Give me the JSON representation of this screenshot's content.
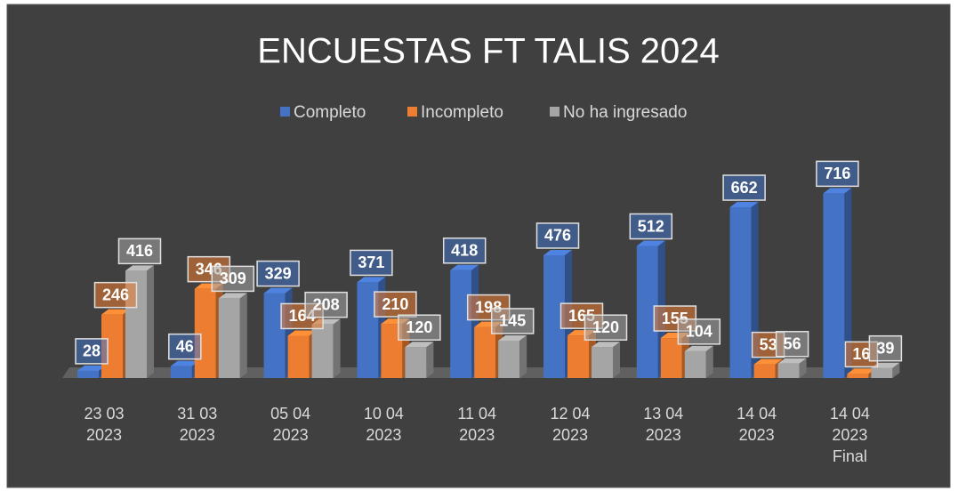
{
  "chart_data": {
    "type": "bar3d",
    "title": "ENCUESTAS FT TALIS 2024",
    "categories": [
      [
        "23 03",
        "2023"
      ],
      [
        "31 03",
        "2023"
      ],
      [
        "05 04",
        "2023"
      ],
      [
        "10 04",
        "2023"
      ],
      [
        "11 04",
        "2023"
      ],
      [
        "12 04",
        "2023"
      ],
      [
        "13 04",
        "2023"
      ],
      [
        "14 04",
        "2023"
      ],
      [
        "14 04",
        "2023",
        "Final"
      ]
    ],
    "series": [
      {
        "name": "Completo",
        "color": "#4472c4",
        "values": [
          28,
          46,
          329,
          371,
          418,
          476,
          512,
          662,
          716
        ]
      },
      {
        "name": "Incompleto",
        "color": "#ed7d31",
        "values": [
          246,
          346,
          164,
          210,
          198,
          165,
          155,
          53,
          16
        ]
      },
      {
        "name": "No ha ingresado",
        "color": "#a5a5a5",
        "values": [
          416,
          309,
          208,
          120,
          145,
          120,
          104,
          56,
          39
        ]
      }
    ],
    "legend": "top"
  }
}
